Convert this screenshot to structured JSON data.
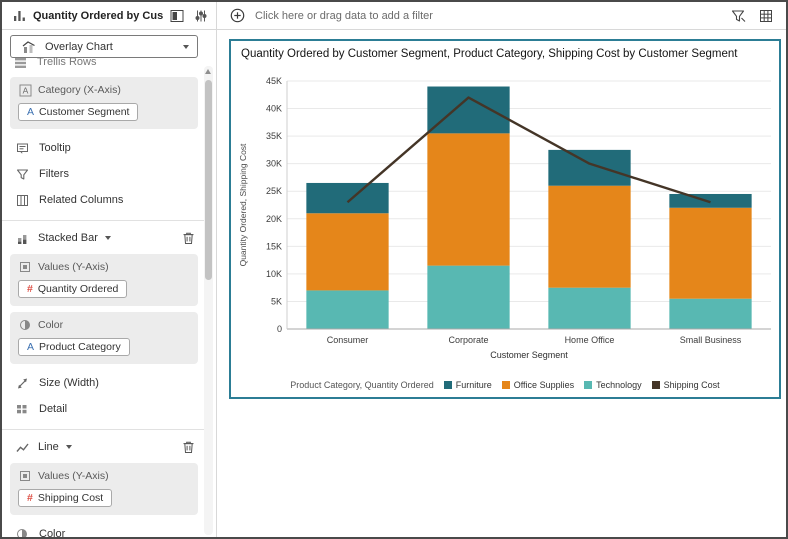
{
  "header": {
    "viz_title": "Quantity Ordered by Custom...",
    "filter_prompt": "Click here or drag data to add a filter"
  },
  "sidebar": {
    "chart_type": "Overlay Chart",
    "trellis_rows": "Trellis Rows",
    "category": {
      "label": "Category (X-Axis)",
      "chip": {
        "prefix": "A",
        "label": "Customer Segment"
      }
    },
    "tooltip": "Tooltip",
    "filters": "Filters",
    "related_columns": "Related Columns",
    "stacked_bar": {
      "header": "Stacked Bar",
      "values_label": "Values (Y-Axis)",
      "values_chip": {
        "prefix": "#",
        "label": "Quantity Ordered"
      },
      "color_label": "Color",
      "color_chip": {
        "prefix": "A",
        "label": "Product Category"
      },
      "size_label": "Size (Width)",
      "detail_label": "Detail"
    },
    "line": {
      "header": "Line",
      "values_label": "Values (Y-Axis)",
      "values_chip": {
        "prefix": "#",
        "label": "Shipping Cost"
      },
      "color_label": "Color"
    }
  },
  "chart_data": {
    "type": "combo",
    "title": "Quantity Ordered by Customer Segment, Product Category, Shipping Cost by Customer Segment",
    "categories": [
      "Consumer",
      "Corporate",
      "Home Office",
      "Small Business"
    ],
    "bar_stack_order_bottom_to_top": [
      "Technology",
      "Office Supplies",
      "Furniture"
    ],
    "bar_series": [
      {
        "name": "Technology",
        "color": "#58b8b2",
        "values": [
          7000,
          11500,
          7500,
          5500
        ]
      },
      {
        "name": "Office Supplies",
        "color": "#e5861a",
        "values": [
          14000,
          24000,
          18500,
          16500
        ]
      },
      {
        "name": "Furniture",
        "color": "#216b79",
        "values": [
          5500,
          8500,
          6500,
          2500
        ]
      }
    ],
    "line_series": {
      "name": "Shipping Cost",
      "color": "#443527",
      "values": [
        23000,
        42000,
        30000,
        23000
      ]
    },
    "xlabel": "Customer Segment",
    "ylabel": "Quantity Ordered, Shipping Cost",
    "ylim": [
      0,
      45000
    ],
    "ytick_step": 5000,
    "ytick_format": "K",
    "grid": true,
    "legend_position": "bottom",
    "legend_title": "Product Category, Quantity Ordered",
    "legend_items": [
      {
        "label": "Furniture",
        "color": "#216b79"
      },
      {
        "label": "Office Supplies",
        "color": "#e5861a"
      },
      {
        "label": "Technology",
        "color": "#58b8b2"
      },
      {
        "label": "Shipping Cost",
        "color": "#443527"
      }
    ]
  }
}
